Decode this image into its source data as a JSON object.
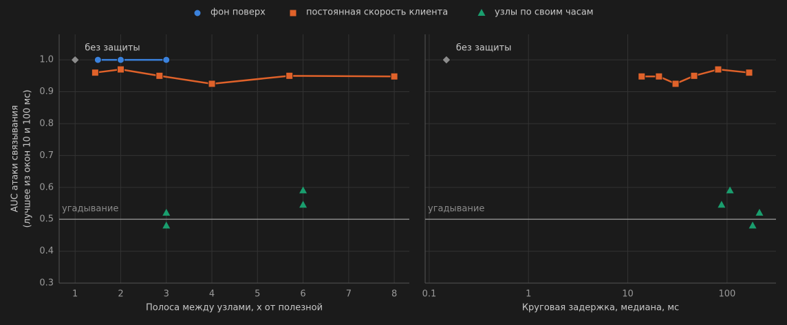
{
  "chart_data": [
    {
      "type": "line",
      "xlabel": "Полоса между узлами, x от полезной",
      "ylabel": [
        "AUC атаки связывания",
        "(лучшее из окон 10 и 100 мс)"
      ],
      "xscale": "linear",
      "xlim": [
        0.65,
        8.33
      ],
      "xticks": [
        1,
        2,
        3,
        4,
        5,
        6,
        7,
        8
      ],
      "ylim": [
        0.3,
        1.08
      ],
      "yticks": [
        0.3,
        0.4,
        0.5,
        0.6,
        0.7,
        0.8,
        0.9,
        {
          "value": 1.0,
          "label": "1.0"
        }
      ],
      "show_ytick_labels": true,
      "grid": true,
      "reference_line": {
        "y": 0.5,
        "label": "угадывание"
      },
      "annotations": [
        {
          "x": 1,
          "y": 1.0,
          "label": "без защиты",
          "color": "#8c8c8c",
          "marker": "diamond"
        }
      ],
      "series": [
        {
          "name": "фон поверх",
          "color": "#3b82dd",
          "marker": "circle",
          "line": true,
          "x": [
            1.5,
            2,
            3
          ],
          "values": [
            1.0,
            1.0,
            1.0
          ]
        },
        {
          "name": "постоянная скорость клиента",
          "color": "#e0622a",
          "marker": "square",
          "line": true,
          "x": [
            1.44,
            2,
            2.85,
            4,
            5.7,
            8
          ],
          "values": [
            0.96,
            0.97,
            0.95,
            0.925,
            0.95,
            0.948
          ]
        },
        {
          "name": "узлы по своим часам",
          "color": "#1a9e6e",
          "marker": "triangle",
          "line": false,
          "x": [
            3,
            3,
            6,
            6
          ],
          "values": [
            0.52,
            0.48,
            0.59,
            0.545
          ]
        }
      ]
    },
    {
      "type": "line",
      "xlabel": "Круговая задержка, медиана, мс",
      "xscale": "log",
      "xlim": [
        0.091,
        311
      ],
      "xticks": [
        0.1,
        1,
        10,
        100
      ],
      "ylim": [
        0.3,
        1.08
      ],
      "yticks": [
        0.3,
        0.4,
        0.5,
        0.6,
        0.7,
        0.8,
        0.9,
        1.0
      ],
      "show_ytick_labels": false,
      "grid": true,
      "reference_line": {
        "y": 0.5,
        "label": "угадывание"
      },
      "annotations": [
        {
          "x": 0.149,
          "y": 1.0,
          "label": "без защиты",
          "color": "#8c8c8c",
          "marker": "diamond"
        }
      ],
      "series": [
        {
          "color": "#e0622a",
          "marker": "square",
          "line": true,
          "x": [
            13.8,
            20.6,
            30.3,
            46.6,
            81.4,
            167
          ],
          "values": [
            0.948,
            0.948,
            0.925,
            0.95,
            0.97,
            0.96
          ]
        },
        {
          "color": "#1a9e6e",
          "marker": "triangle",
          "line": false,
          "x": [
            88,
            107,
            181,
            212
          ],
          "values": [
            0.545,
            0.59,
            0.48,
            0.52
          ]
        }
      ]
    }
  ]
}
